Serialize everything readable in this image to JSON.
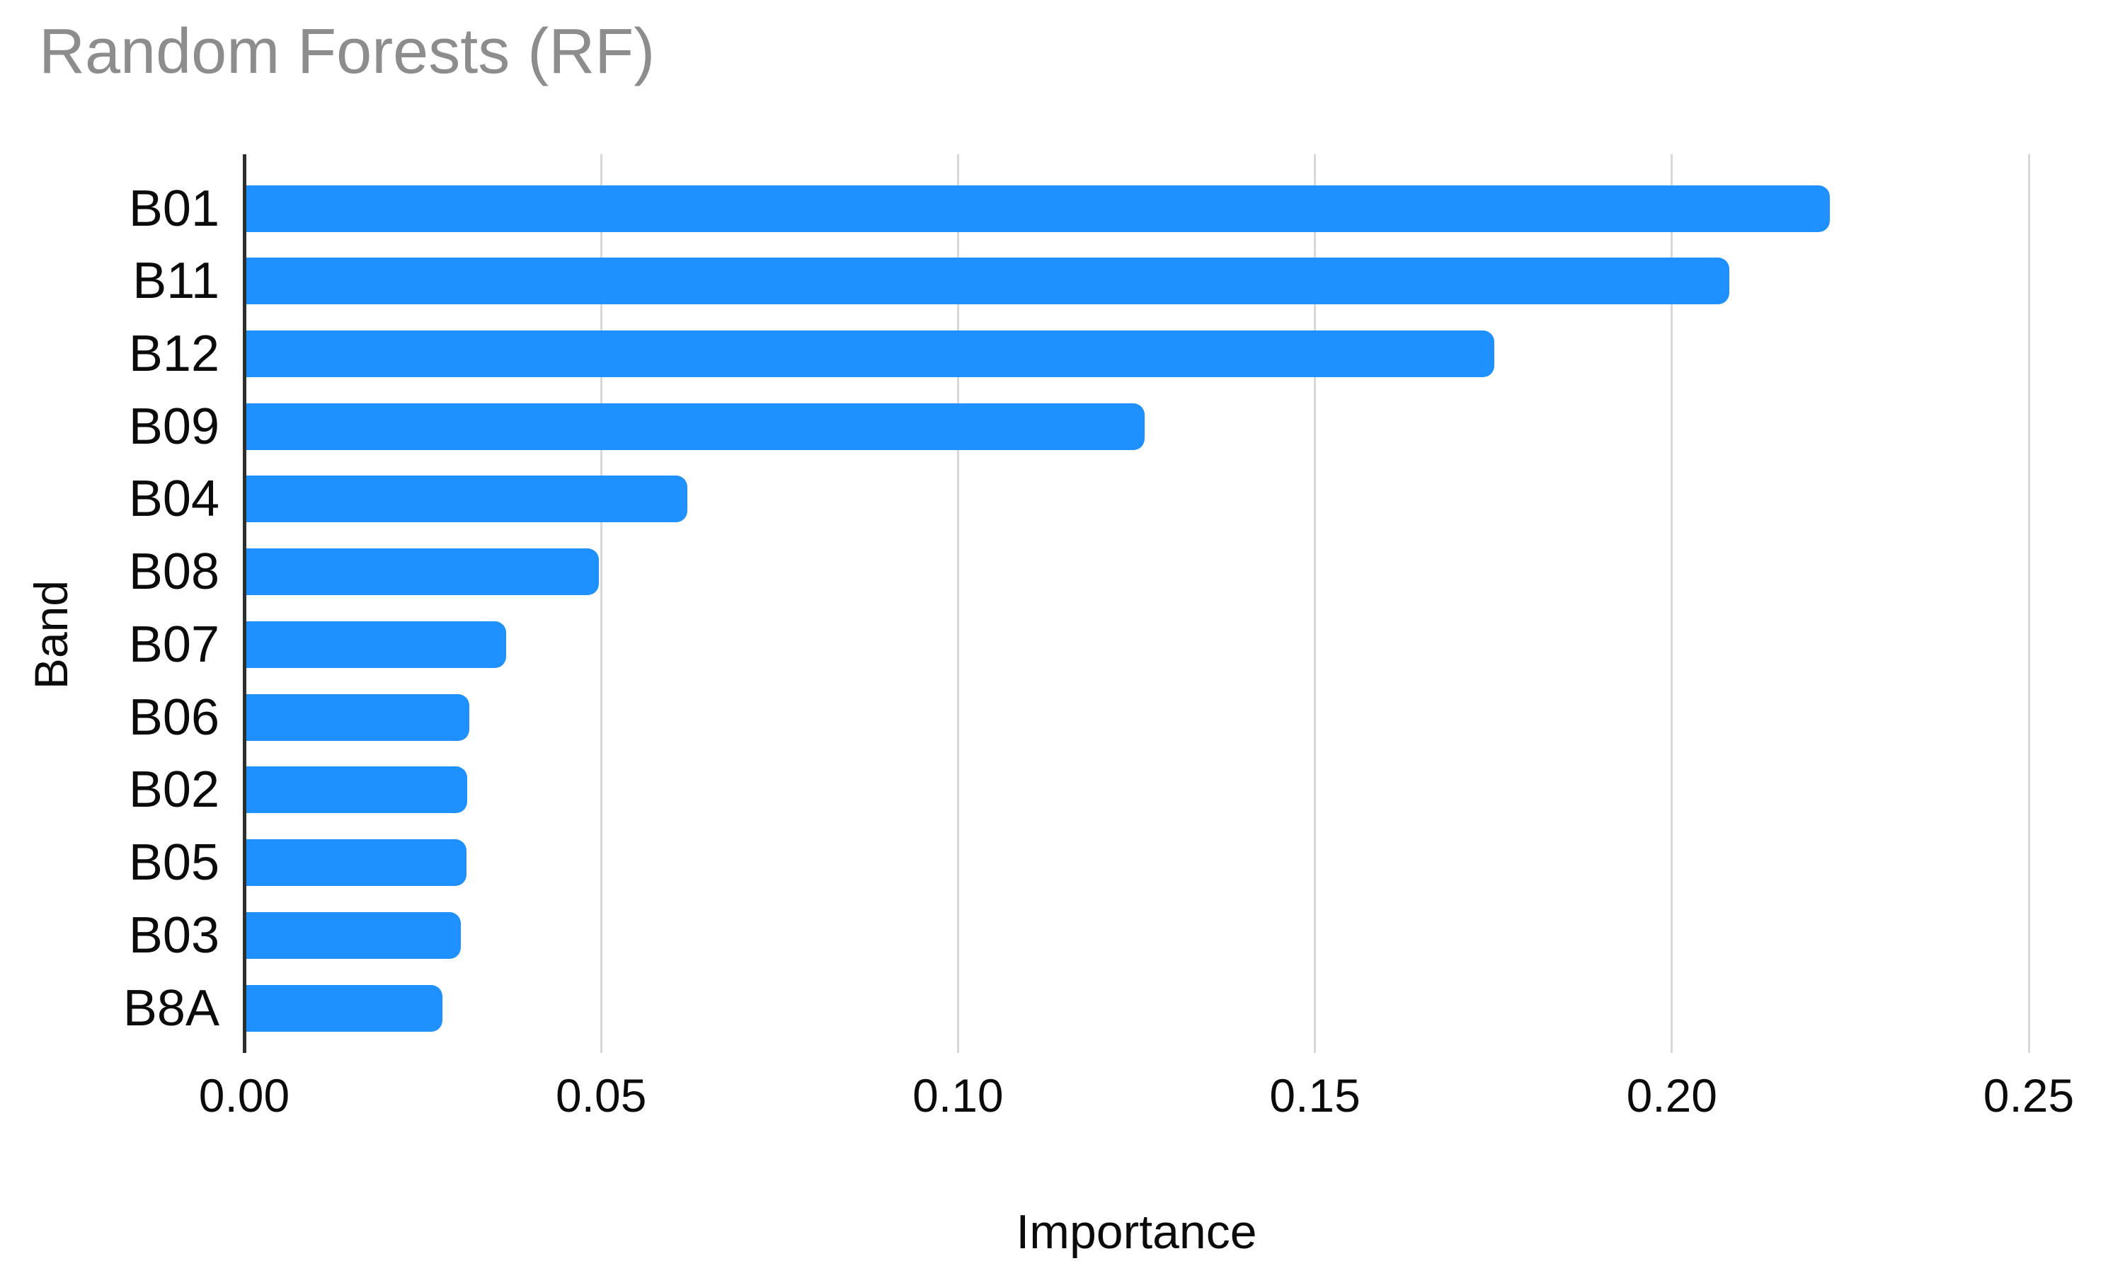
{
  "title": {
    "text": "Random Forests (RF)",
    "color": "#8d8d8d"
  },
  "chart_data": {
    "type": "bar",
    "orientation": "horizontal",
    "title": "Random Forests (RF)",
    "categories": [
      "B01",
      "B11",
      "B12",
      "B09",
      "B04",
      "B08",
      "B07",
      "B06",
      "B02",
      "B05",
      "B03",
      "B8A"
    ],
    "values": [
      0.222,
      0.208,
      0.175,
      0.126,
      0.062,
      0.0496,
      0.0366,
      0.0314,
      0.0311,
      0.031,
      0.0302,
      0.0277
    ],
    "xlabel": "Importance",
    "ylabel": "Band",
    "xlim": [
      0,
      0.25
    ],
    "xticks": [
      0,
      0.05,
      0.1,
      0.15,
      0.2,
      0.25
    ],
    "xtick_labels": [
      "0.00",
      "0.05",
      "0.10",
      "0.15",
      "0.20",
      "0.25"
    ],
    "grid": true,
    "legend": false,
    "bar_color": "#1E90FF",
    "gridline_color": "#d8d8d8",
    "axis_color": "#2e2e2e",
    "label_color": "#0b0b0b"
  }
}
